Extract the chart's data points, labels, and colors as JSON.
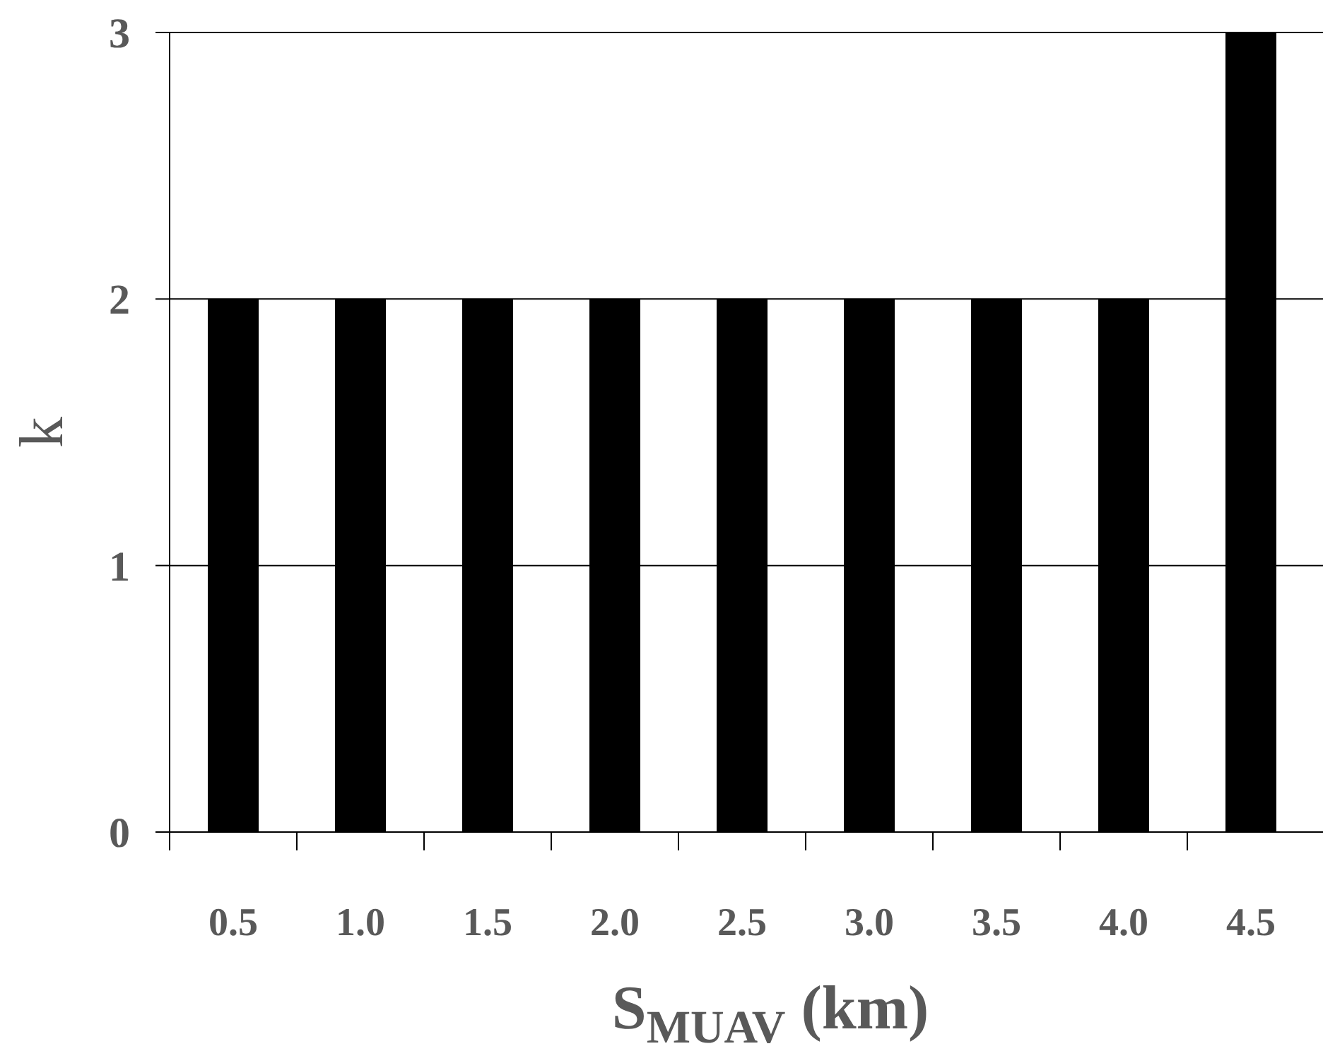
{
  "chart_data": {
    "type": "bar",
    "categories": [
      "0.5",
      "1.0",
      "1.5",
      "2.0",
      "2.5",
      "3.0",
      "3.5",
      "4.0",
      "4.5"
    ],
    "values": [
      2,
      2,
      2,
      2,
      2,
      2,
      2,
      2,
      3
    ],
    "color": "#000000",
    "ylim": [
      0,
      3
    ],
    "yticks": [
      0,
      1,
      2,
      3
    ],
    "grid": "y",
    "xlabel": "S$_{MUAV}$ (km)",
    "ylabel": "k"
  }
}
